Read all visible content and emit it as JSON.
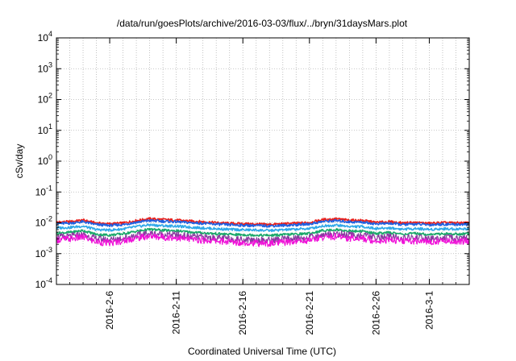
{
  "chart_data": {
    "type": "line",
    "title": "/data/run/goesPlots/archive/2016-03-03/flux/../bryn/31daysMars.plot",
    "xlabel": "Coordinated Universal Time (UTC)",
    "ylabel": "cSv/day",
    "yscale": "log",
    "ylim": [
      0.0001,
      10000
    ],
    "xlim": [
      "2016-02-02",
      "2016-03-04"
    ],
    "grid": true,
    "legend": "none",
    "y_ticks": [
      {
        "value": 0.0001,
        "base": "10",
        "exp": "-4"
      },
      {
        "value": 0.001,
        "base": "10",
        "exp": "-3"
      },
      {
        "value": 0.01,
        "base": "10",
        "exp": "-2"
      },
      {
        "value": 0.1,
        "base": "10",
        "exp": "-1"
      },
      {
        "value": 1,
        "base": "10",
        "exp": "0"
      },
      {
        "value": 10,
        "base": "10",
        "exp": "1"
      },
      {
        "value": 100,
        "base": "10",
        "exp": "2"
      },
      {
        "value": 1000,
        "base": "10",
        "exp": "3"
      },
      {
        "value": 10000,
        "base": "10",
        "exp": "4"
      }
    ],
    "x_ticks": [
      "2016-2-6",
      "2016-2-11",
      "2016-2-16",
      "2016-2-21",
      "2016-2-26",
      "2016-3-1"
    ],
    "x_tick_dates": [
      "2016-02-06",
      "2016-02-11",
      "2016-02-16",
      "2016-02-21",
      "2016-02-26",
      "2016-03-01"
    ],
    "x": [
      "2016-02-02",
      "2016-02-03",
      "2016-02-04",
      "2016-02-05",
      "2016-02-06",
      "2016-02-07",
      "2016-02-08",
      "2016-02-09",
      "2016-02-10",
      "2016-02-11",
      "2016-02-12",
      "2016-02-13",
      "2016-02-14",
      "2016-02-15",
      "2016-02-16",
      "2016-02-17",
      "2016-02-18",
      "2016-02-19",
      "2016-02-20",
      "2016-02-21",
      "2016-02-22",
      "2016-02-23",
      "2016-02-24",
      "2016-02-25",
      "2016-02-26",
      "2016-02-27",
      "2016-02-28",
      "2016-02-29",
      "2016-03-01",
      "2016-03-02",
      "2016-03-03",
      "2016-03-04"
    ],
    "series": [
      {
        "color": "#e8201c",
        "values": [
          0.0105,
          0.0108,
          0.0122,
          0.0098,
          0.0092,
          0.0098,
          0.0118,
          0.0135,
          0.0128,
          0.0122,
          0.0114,
          0.0108,
          0.0101,
          0.0096,
          0.0093,
          0.0091,
          0.0088,
          0.0092,
          0.0097,
          0.0102,
          0.0126,
          0.0134,
          0.0121,
          0.0119,
          0.0103,
          0.0108,
          0.0098,
          0.0102,
          0.0096,
          0.0101,
          0.0099,
          0.01
        ]
      },
      {
        "color": "#1f5fe0",
        "values": [
          0.0094,
          0.0097,
          0.0108,
          0.0087,
          0.0082,
          0.0087,
          0.0104,
          0.0118,
          0.0112,
          0.0108,
          0.0101,
          0.0096,
          0.009,
          0.0086,
          0.0083,
          0.0081,
          0.0079,
          0.0082,
          0.0086,
          0.0091,
          0.011,
          0.0117,
          0.0107,
          0.0105,
          0.0092,
          0.0096,
          0.0087,
          0.0091,
          0.0086,
          0.009,
          0.0088,
          0.0089
        ]
      },
      {
        "color": "#2fa8e8",
        "values": [
          0.0068,
          0.0071,
          0.0078,
          0.006,
          0.0058,
          0.0063,
          0.0075,
          0.0086,
          0.008,
          0.0078,
          0.0072,
          0.0068,
          0.0064,
          0.0061,
          0.0059,
          0.0058,
          0.0056,
          0.0059,
          0.0062,
          0.0065,
          0.0079,
          0.0084,
          0.0076,
          0.0075,
          0.0065,
          0.0068,
          0.0062,
          0.0065,
          0.0061,
          0.0064,
          0.0063,
          0.0064
        ]
      },
      {
        "color": "#1ba86a",
        "values": [
          0.0046,
          0.0049,
          0.0056,
          0.0042,
          0.004,
          0.0044,
          0.0053,
          0.0061,
          0.0057,
          0.0055,
          0.005,
          0.0047,
          0.0044,
          0.0042,
          0.0041,
          0.004,
          0.0039,
          0.0041,
          0.0043,
          0.0045,
          0.0056,
          0.006,
          0.0054,
          0.0053,
          0.0045,
          0.0048,
          0.0043,
          0.0045,
          0.0042,
          0.0044,
          0.0043,
          0.0044
        ]
      },
      {
        "color": "#8a3aa0",
        "values": [
          0.0034,
          0.0036,
          0.0041,
          0.003,
          0.0028,
          0.0032,
          0.0039,
          0.0045,
          0.0042,
          0.004,
          0.0036,
          0.0034,
          0.0032,
          0.003,
          0.0029,
          0.0028,
          0.0027,
          0.0029,
          0.0031,
          0.0033,
          0.0041,
          0.0044,
          0.004,
          0.0039,
          0.0033,
          0.0035,
          0.0031,
          0.0033,
          0.003,
          0.0032,
          0.0031,
          0.0032
        ]
      },
      {
        "color": "#f012d8",
        "values": [
          0.0028,
          0.003,
          0.0034,
          0.0024,
          0.0022,
          0.0026,
          0.0032,
          0.0037,
          0.0034,
          0.0033,
          0.0029,
          0.0027,
          0.0026,
          0.0024,
          0.0023,
          0.0022,
          0.0021,
          0.0023,
          0.0025,
          0.0027,
          0.0034,
          0.0036,
          0.0032,
          0.0031,
          0.0026,
          0.0028,
          0.0025,
          0.0026,
          0.0024,
          0.0026,
          0.0025,
          0.0026
        ]
      }
    ]
  }
}
